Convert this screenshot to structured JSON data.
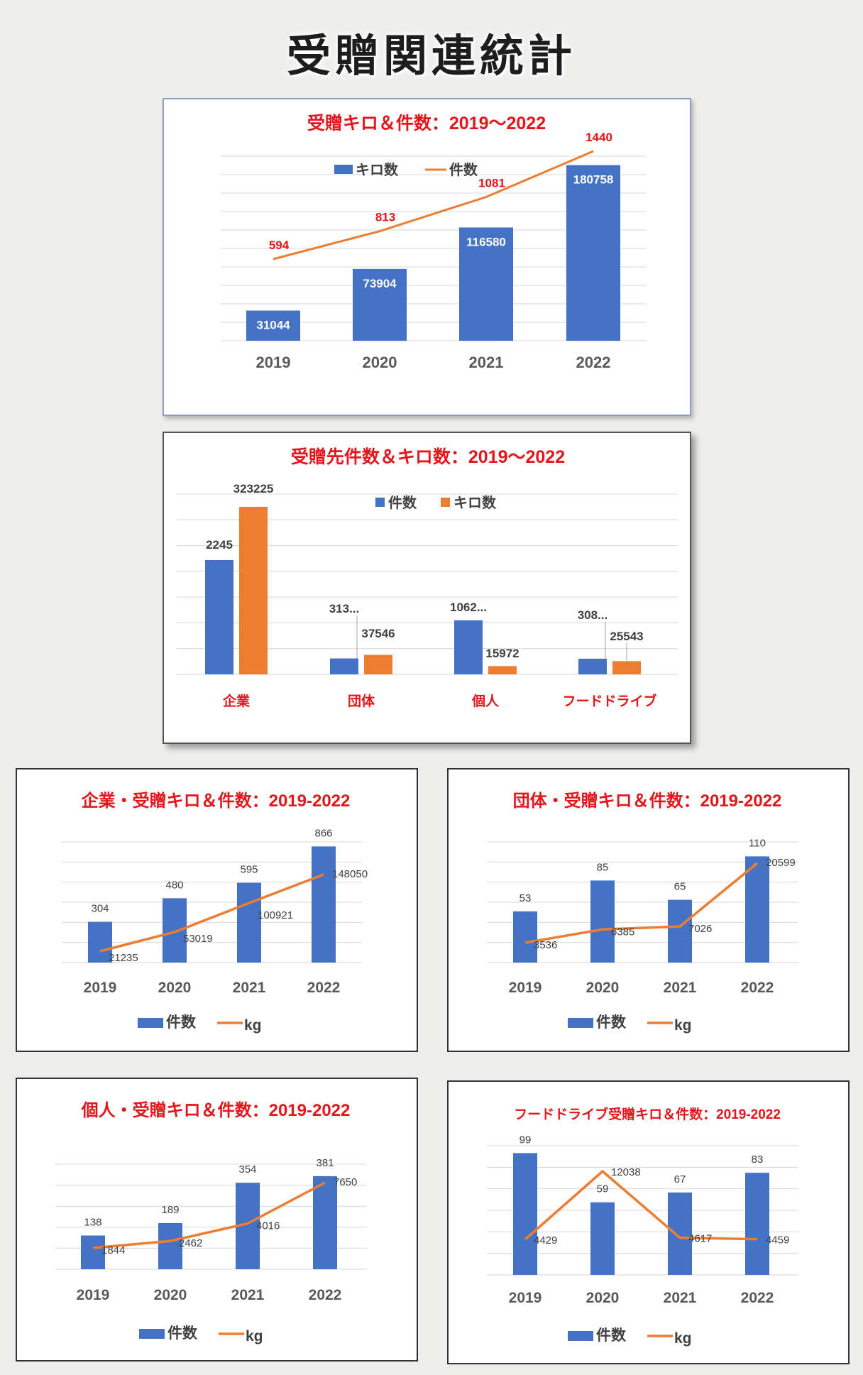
{
  "page": {
    "title": "受贈関連統計"
  },
  "colors": {
    "blue": "#4472c4",
    "orange": "#ed7d31",
    "red": "#e4161b",
    "grid": "#d9d9d9"
  },
  "chart_data": [
    {
      "id": "c1",
      "type": "bar",
      "title": "受贈キロ＆件数：2019〜2022",
      "categories": [
        "2019",
        "2020",
        "2021",
        "2022"
      ],
      "series": [
        {
          "name": "キロ数",
          "type": "bar",
          "values": [
            31044,
            73904,
            116580,
            180758
          ]
        },
        {
          "name": "件数",
          "type": "line",
          "values": [
            594,
            813,
            1081,
            1440
          ]
        }
      ],
      "legend": "top",
      "grid": true
    },
    {
      "id": "c2",
      "type": "bar",
      "title": "受贈先件数＆キロ数：2019〜2022",
      "categories": [
        "企業",
        "団体",
        "個人",
        "フードドライブ"
      ],
      "series": [
        {
          "name": "件数",
          "type": "bar",
          "values": [
            2245,
            313,
            1062,
            308
          ]
        },
        {
          "name": "キロ数",
          "type": "bar",
          "values": [
            323225,
            37546,
            15972,
            25543
          ]
        }
      ],
      "data_labels": [
        [
          "2245",
          "313...",
          "1062...",
          "308..."
        ],
        [
          "323225",
          "37546",
          "15972",
          "25543"
        ]
      ],
      "legend": "top",
      "grid": true
    },
    {
      "id": "c3",
      "type": "bar",
      "title": "企業・受贈キロ＆件数：2019-2022",
      "categories": [
        "2019",
        "2020",
        "2021",
        "2022"
      ],
      "series": [
        {
          "name": "件数",
          "type": "bar",
          "values": [
            304,
            480,
            595,
            866
          ]
        },
        {
          "name": "kg",
          "type": "line",
          "values": [
            21235,
            53019,
            100921,
            148050
          ]
        }
      ],
      "legend": "bottom",
      "grid": true
    },
    {
      "id": "c4",
      "type": "bar",
      "title": "団体・受贈キロ＆件数：2019-2022",
      "categories": [
        "2019",
        "2020",
        "2021",
        "2022"
      ],
      "series": [
        {
          "name": "件数",
          "type": "bar",
          "values": [
            53,
            85,
            65,
            110
          ]
        },
        {
          "name": "kg",
          "type": "line",
          "values": [
            3536,
            6385,
            7026,
            20599
          ]
        }
      ],
      "legend": "bottom",
      "grid": true
    },
    {
      "id": "c5",
      "type": "bar",
      "title": "個人・受贈キロ＆件数：2019-2022",
      "categories": [
        "2019",
        "2020",
        "2021",
        "2022"
      ],
      "series": [
        {
          "name": "件数",
          "type": "bar",
          "values": [
            138,
            189,
            354,
            381
          ]
        },
        {
          "name": "kg",
          "type": "line",
          "values": [
            1844,
            2462,
            4016,
            7650
          ]
        }
      ],
      "legend": "bottom",
      "grid": true
    },
    {
      "id": "c6",
      "type": "bar",
      "title": "フードドライブ受贈キロ＆件数：2019-2022",
      "categories": [
        "2019",
        "2020",
        "2021",
        "2022"
      ],
      "series": [
        {
          "name": "件数",
          "type": "bar",
          "values": [
            99,
            59,
            67,
            83
          ]
        },
        {
          "name": "kg",
          "type": "line",
          "values": [
            4429,
            12038,
            4617,
            4459
          ]
        }
      ],
      "legend": "bottom",
      "grid": true
    }
  ]
}
